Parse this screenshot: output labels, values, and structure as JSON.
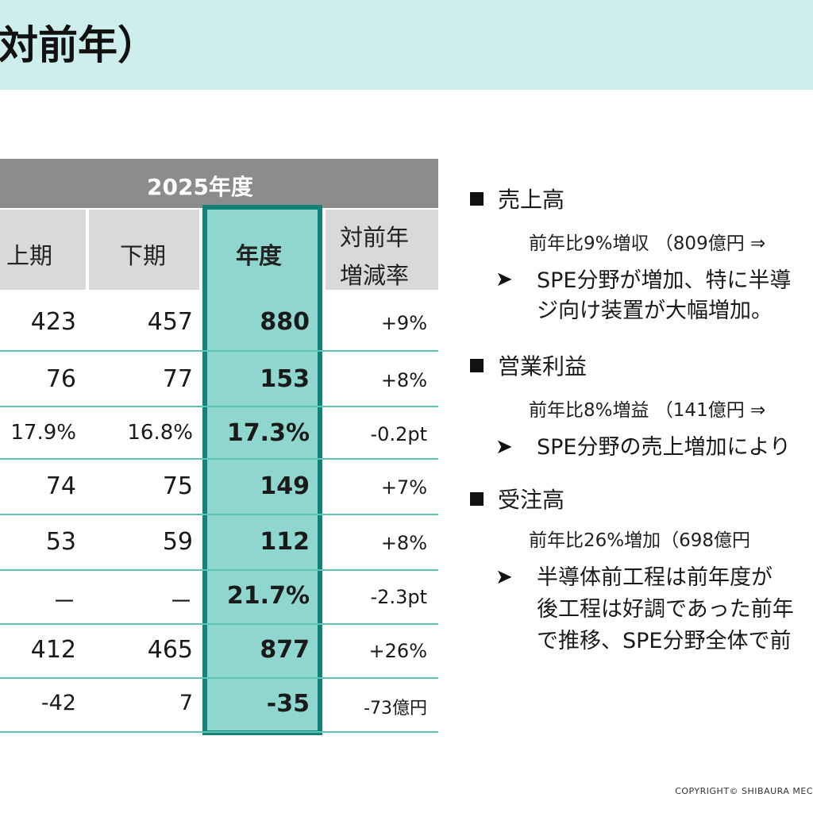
{
  "title": "対前年）",
  "table": {
    "header": "2025年度",
    "columns": {
      "upper": "上期",
      "lower": "下期",
      "year": "年度",
      "yoy_line1": "対前年",
      "yoy_line2": "増減率"
    },
    "rows": [
      {
        "upper": "423",
        "lower": "457",
        "year": "880",
        "yoy": "+9%"
      },
      {
        "upper": "76",
        "lower": "77",
        "year": "153",
        "yoy": "+8%"
      },
      {
        "upper": "17.9%",
        "lower": "16.8%",
        "year": "17.3%",
        "yoy": "-0.2pt"
      },
      {
        "upper": "74",
        "lower": "75",
        "year": "149",
        "yoy": "+7%"
      },
      {
        "upper": "53",
        "lower": "59",
        "year": "112",
        "yoy": "+8%"
      },
      {
        "upper": "－",
        "lower": "－",
        "year": "21.7%",
        "yoy": "-2.3pt"
      },
      {
        "upper": "412",
        "lower": "465",
        "year": "877",
        "yoy": "+26%"
      },
      {
        "upper": "-42",
        "lower": "7",
        "year": "-35",
        "yoy": "-73億円"
      }
    ]
  },
  "bullets": [
    {
      "heading": "売上高",
      "summary": "前年比9%増収 （809億円 ⇒",
      "detail_line1": "SPE分野が増加、特に半導",
      "detail_line2": "ジ向け装置が大幅増加。",
      "detail_line3": ""
    },
    {
      "heading": "営業利益",
      "summary": "前年比8%増益 （141億円 ⇒",
      "detail_line1": "SPE分野の売上増加により",
      "detail_line2": "",
      "detail_line3": ""
    },
    {
      "heading": "受注高",
      "summary": "前年比26%増加（698億円",
      "detail_line1": "半導体前工程は前年度が",
      "detail_line2": "後工程は好調であった前年",
      "detail_line3": "で推移、SPE分野全体で前"
    }
  ],
  "footer": {
    "copyright": "COPYRIGHT© SHIBAURA MEC"
  },
  "colors": {
    "title_band": "#cdeeed",
    "table_header": "#8c8c8c",
    "subheader": "#d9d9d9",
    "highlight_fill": "#8fd6ce",
    "highlight_border": "#128276",
    "row_rule": "#5fc4b8"
  }
}
